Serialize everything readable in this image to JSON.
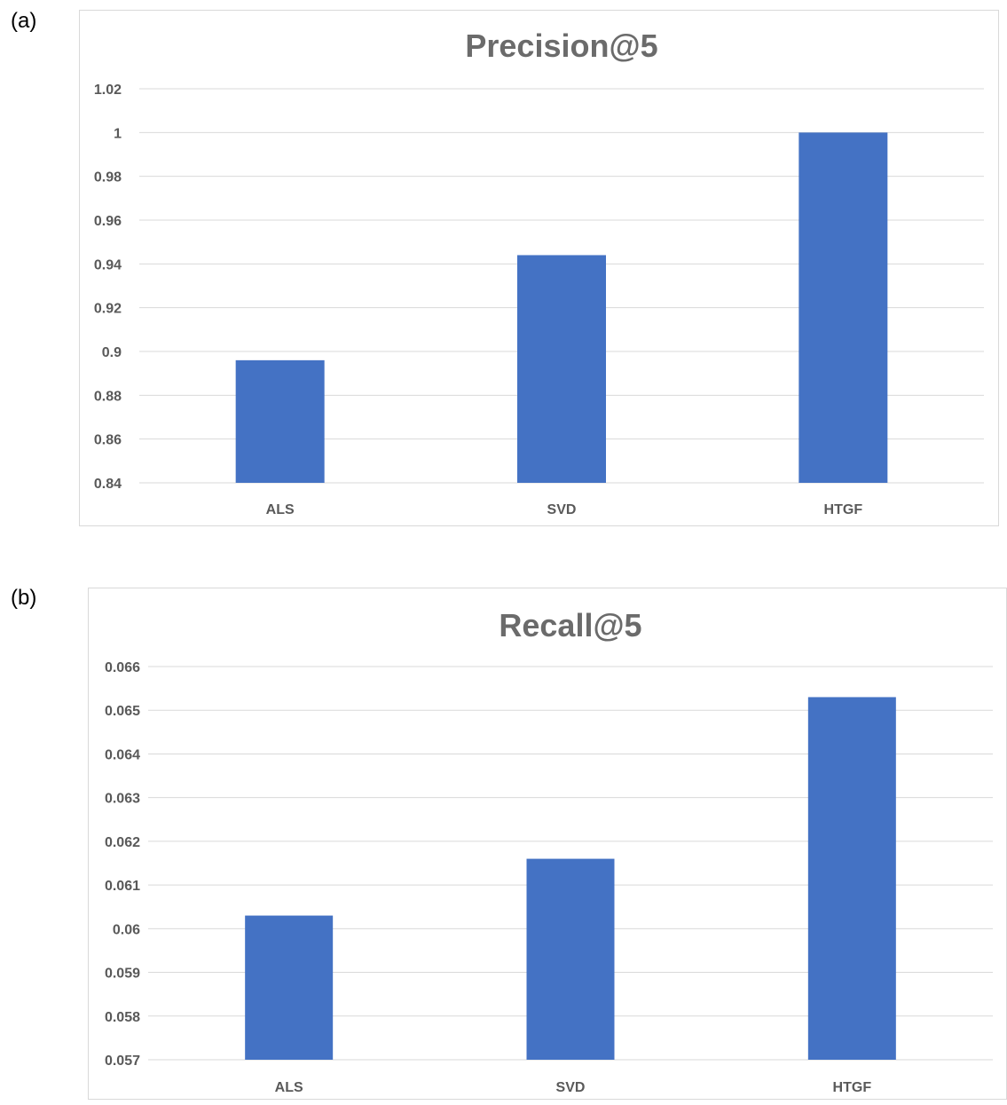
{
  "panels": [
    {
      "label": "(a)"
    },
    {
      "label": "(b)"
    }
  ],
  "colors": {
    "bar": "#4472C4"
  },
  "chart_data": [
    {
      "type": "bar",
      "title": "Precision@5",
      "categories": [
        "ALS",
        "SVD",
        "HTGF"
      ],
      "values": [
        0.896,
        0.944,
        1.0
      ],
      "ylim": [
        0.84,
        1.02
      ],
      "yticks": [
        "0.84",
        "0.86",
        "0.88",
        "0.9",
        "0.92",
        "0.94",
        "0.96",
        "0.98",
        "1",
        "1.02"
      ],
      "grid": true,
      "xlabel": "",
      "ylabel": ""
    },
    {
      "type": "bar",
      "title": "Recall@5",
      "categories": [
        "ALS",
        "SVD",
        "HTGF"
      ],
      "values": [
        0.0603,
        0.0616,
        0.0653
      ],
      "ylim": [
        0.057,
        0.066
      ],
      "yticks": [
        "0.057",
        "0.058",
        "0.059",
        "0.06",
        "0.061",
        "0.062",
        "0.063",
        "0.064",
        "0.065",
        "0.066"
      ],
      "grid": true,
      "xlabel": "",
      "ylabel": ""
    }
  ]
}
